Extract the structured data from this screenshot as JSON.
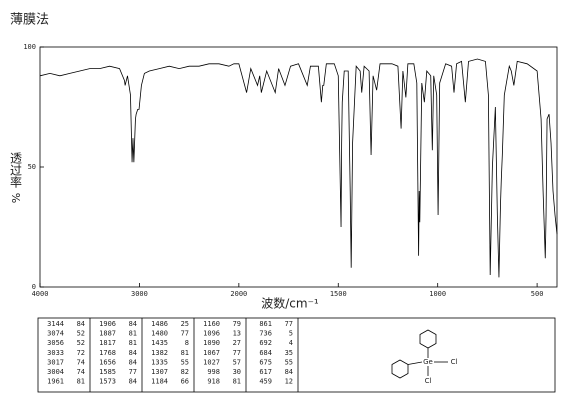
{
  "chart_data": {
    "type": "line",
    "title": "薄膜法",
    "x_label": "波数/cm⁻¹",
    "y_label": "透过率",
    "y_unit": "%",
    "xlim": [
      4000,
      400
    ],
    "x_scale_break": 2000,
    "x_scale_ratio": 2,
    "xticks": [
      4000,
      3000,
      2000,
      1500,
      1000,
      500
    ],
    "ylim": [
      0,
      100
    ],
    "yticks": [
      0,
      50,
      100
    ],
    "color": "#000000",
    "x": [
      4000,
      3900,
      3800,
      3700,
      3600,
      3500,
      3400,
      3300,
      3200,
      3150,
      3144,
      3120,
      3090,
      3074,
      3065,
      3056,
      3040,
      3033,
      3017,
      3004,
      2980,
      2950,
      2900,
      2800,
      2700,
      2600,
      2500,
      2400,
      2300,
      2200,
      2100,
      2050,
      2000,
      1961,
      1940,
      1906,
      1895,
      1887,
      1860,
      1817,
      1800,
      1768,
      1740,
      1700,
      1656,
      1640,
      1600,
      1585,
      1578,
      1573,
      1560,
      1520,
      1500,
      1486,
      1483,
      1480,
      1470,
      1450,
      1440,
      1435,
      1428,
      1410,
      1390,
      1382,
      1370,
      1345,
      1335,
      1325,
      1307,
      1290,
      1230,
      1200,
      1184,
      1175,
      1160,
      1150,
      1120,
      1105,
      1096,
      1093,
      1090,
      1080,
      1067,
      1055,
      1035,
      1027,
      1020,
      1005,
      998,
      990,
      960,
      930,
      918,
      905,
      880,
      861,
      845,
      800,
      760,
      745,
      736,
      725,
      710,
      700,
      692,
      688,
      684,
      680,
      675,
      665,
      640,
      630,
      617,
      600,
      550,
      500,
      480,
      470,
      459,
      455,
      450,
      440,
      430,
      420,
      410,
      400
    ],
    "values": [
      88,
      89,
      88,
      89,
      90,
      91,
      91,
      92,
      91,
      86,
      84,
      88,
      80,
      52,
      62,
      52,
      70,
      72,
      74,
      74,
      84,
      89,
      90,
      91,
      92,
      91,
      92,
      92,
      93,
      93,
      92,
      93,
      93,
      81,
      91,
      84,
      88,
      81,
      90,
      81,
      91,
      84,
      92,
      93,
      84,
      92,
      92,
      77,
      84,
      84,
      93,
      93,
      88,
      25,
      60,
      77,
      90,
      90,
      40,
      8,
      60,
      92,
      90,
      81,
      92,
      90,
      55,
      88,
      82,
      93,
      93,
      92,
      66,
      90,
      79,
      93,
      93,
      85,
      13,
      40,
      27,
      85,
      77,
      90,
      88,
      57,
      88,
      80,
      30,
      85,
      93,
      92,
      81,
      93,
      94,
      77,
      94,
      95,
      94,
      80,
      5,
      50,
      75,
      30,
      4,
      20,
      35,
      45,
      55,
      80,
      92,
      90,
      84,
      94,
      93,
      90,
      70,
      40,
      12,
      30,
      70,
      72,
      60,
      40,
      30,
      22
    ]
  },
  "peak_table": [
    [
      3144,
      84
    ],
    [
      3074,
      52
    ],
    [
      3056,
      52
    ],
    [
      3033,
      72
    ],
    [
      3017,
      74
    ],
    [
      3004,
      74
    ],
    [
      1961,
      81
    ],
    [
      1906,
      84
    ],
    [
      1887,
      81
    ],
    [
      1817,
      81
    ],
    [
      1768,
      84
    ],
    [
      1656,
      84
    ],
    [
      1585,
      77
    ],
    [
      1573,
      84
    ],
    [
      1486,
      25
    ],
    [
      1480,
      77
    ],
    [
      1435,
      8
    ],
    [
      1382,
      81
    ],
    [
      1335,
      55
    ],
    [
      1307,
      82
    ],
    [
      1184,
      66
    ],
    [
      1160,
      79
    ],
    [
      1096,
      13
    ],
    [
      1090,
      27
    ],
    [
      1067,
      77
    ],
    [
      1027,
      57
    ],
    [
      998,
      30
    ],
    [
      918,
      81
    ],
    [
      861,
      77
    ],
    [
      736,
      5
    ],
    [
      692,
      4
    ],
    [
      684,
      35
    ],
    [
      675,
      55
    ],
    [
      617,
      84
    ],
    [
      459,
      12
    ]
  ],
  "structure": {
    "center": "Ge",
    "substituents": [
      "Cl",
      "Cl"
    ]
  }
}
